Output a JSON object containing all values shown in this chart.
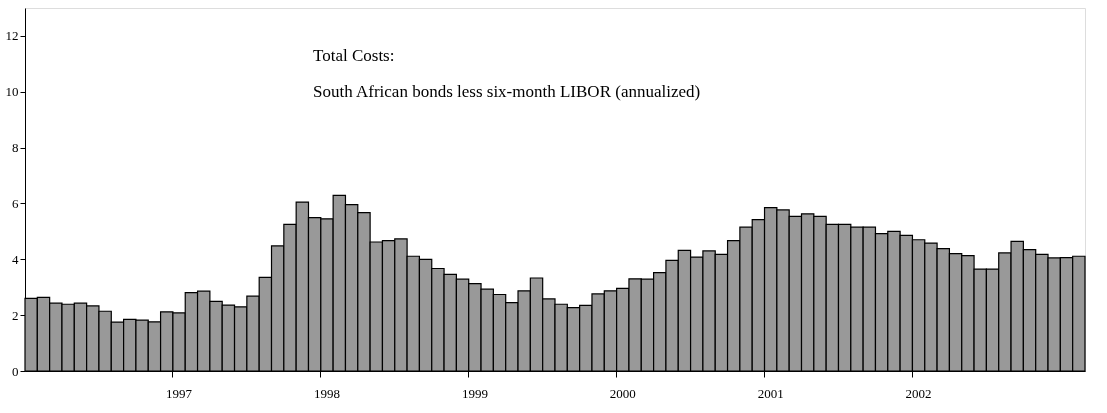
{
  "chart_data": {
    "type": "bar",
    "annotations": [
      "Total Costs:",
      "South African bonds less six-month LIBOR (annualized)"
    ],
    "categories": [
      null,
      null,
      null,
      null,
      null,
      null,
      null,
      null,
      null,
      null,
      null,
      null,
      "1997",
      null,
      null,
      null,
      null,
      null,
      null,
      null,
      null,
      null,
      null,
      null,
      "1998",
      null,
      null,
      null,
      null,
      null,
      null,
      null,
      null,
      null,
      null,
      null,
      "1999",
      null,
      null,
      null,
      null,
      null,
      null,
      null,
      null,
      null,
      null,
      null,
      "2000",
      null,
      null,
      null,
      null,
      null,
      null,
      null,
      null,
      null,
      null,
      null,
      "2001",
      null,
      null,
      null,
      null,
      null,
      null,
      null,
      null,
      null,
      null,
      null,
      "2002",
      null,
      null,
      null,
      null,
      null,
      null,
      null,
      null,
      null,
      null,
      null,
      null,
      null
    ],
    "values": [
      2.6,
      2.64,
      2.43,
      2.39,
      2.43,
      2.33,
      2.14,
      1.75,
      1.85,
      1.82,
      1.76,
      2.12,
      2.08,
      2.81,
      2.86,
      2.49,
      2.36,
      2.3,
      2.68,
      3.35,
      4.48,
      5.25,
      6.05,
      5.49,
      5.45,
      6.29,
      5.96,
      5.67,
      4.62,
      4.67,
      4.73,
      4.11,
      4.0,
      3.67,
      3.46,
      3.29,
      3.13,
      2.93,
      2.74,
      2.45,
      2.87,
      3.33,
      2.58,
      2.39,
      2.27,
      2.35,
      2.76,
      2.87,
      2.96,
      3.3,
      3.29,
      3.52,
      3.96,
      4.32,
      4.08,
      4.3,
      4.18,
      4.67,
      5.15,
      5.42,
      5.85,
      5.77,
      5.54,
      5.63,
      5.54,
      5.25,
      5.25,
      5.15,
      5.15,
      4.92,
      5.0,
      4.86,
      4.7,
      4.58,
      4.38,
      4.2,
      4.13,
      3.65,
      3.65,
      4.23,
      4.64,
      4.35,
      4.18,
      4.05,
      4.06,
      4.11
    ],
    "color": "#999999",
    "ylim": [
      0,
      13
    ],
    "yticks": [
      0,
      2,
      4,
      6,
      8,
      10,
      12
    ],
    "grid": false,
    "legend": false
  }
}
